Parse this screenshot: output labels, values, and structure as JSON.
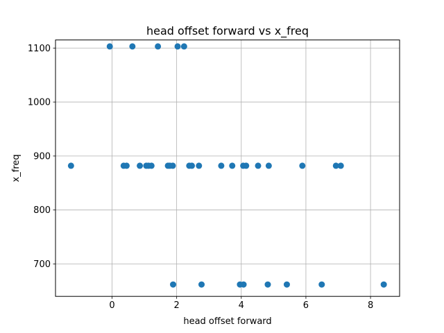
{
  "chart_data": {
    "type": "scatter",
    "title": "head offset forward vs x_freq",
    "xlabel": "head offset forward",
    "ylabel": "x_freq",
    "xlim": [
      -1.75,
      8.9
    ],
    "ylim": [
      640,
      1115
    ],
    "xticks": [
      0,
      2,
      4,
      6,
      8
    ],
    "yticks": [
      700,
      800,
      900,
      1000,
      1100
    ],
    "grid": true,
    "marker_color": "#1f77b4",
    "points": [
      {
        "x": -0.07,
        "y": 1103
      },
      {
        "x": 0.63,
        "y": 1103
      },
      {
        "x": 1.42,
        "y": 1103
      },
      {
        "x": 2.03,
        "y": 1103
      },
      {
        "x": 2.23,
        "y": 1103
      },
      {
        "x": -1.27,
        "y": 882
      },
      {
        "x": 0.36,
        "y": 882
      },
      {
        "x": 0.45,
        "y": 882
      },
      {
        "x": 0.86,
        "y": 882
      },
      {
        "x": 1.06,
        "y": 882
      },
      {
        "x": 1.13,
        "y": 882
      },
      {
        "x": 1.22,
        "y": 882
      },
      {
        "x": 1.73,
        "y": 882
      },
      {
        "x": 1.79,
        "y": 882
      },
      {
        "x": 1.88,
        "y": 882
      },
      {
        "x": 2.39,
        "y": 882
      },
      {
        "x": 2.47,
        "y": 882
      },
      {
        "x": 2.69,
        "y": 882
      },
      {
        "x": 3.38,
        "y": 882
      },
      {
        "x": 3.72,
        "y": 882
      },
      {
        "x": 4.06,
        "y": 882
      },
      {
        "x": 4.15,
        "y": 882
      },
      {
        "x": 4.52,
        "y": 882
      },
      {
        "x": 4.85,
        "y": 882
      },
      {
        "x": 5.89,
        "y": 882
      },
      {
        "x": 6.93,
        "y": 882
      },
      {
        "x": 7.08,
        "y": 882
      },
      {
        "x": 1.89,
        "y": 662
      },
      {
        "x": 2.77,
        "y": 662
      },
      {
        "x": 3.96,
        "y": 662
      },
      {
        "x": 4.07,
        "y": 662
      },
      {
        "x": 4.82,
        "y": 662
      },
      {
        "x": 5.41,
        "y": 662
      },
      {
        "x": 6.49,
        "y": 662
      },
      {
        "x": 8.41,
        "y": 662
      }
    ]
  }
}
